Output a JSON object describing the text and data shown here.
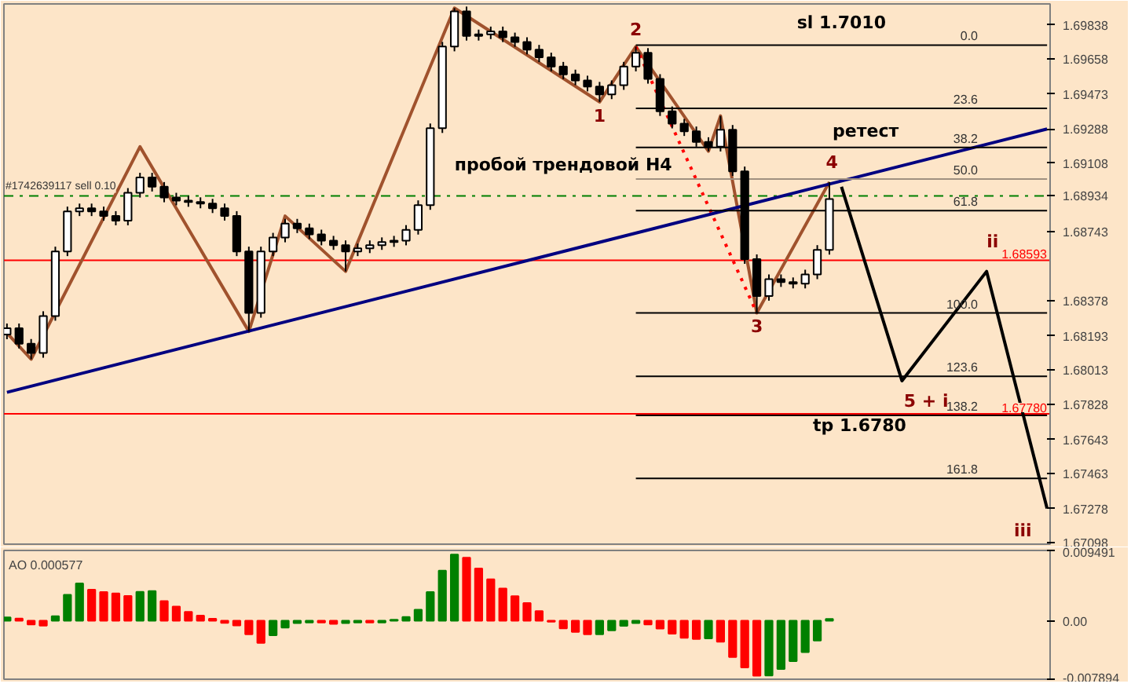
{
  "chart_data": [
    {
      "type": "candlestick",
      "color": "#000000",
      "ylim": [
        1.6709,
        1.6995
      ],
      "tick_labels": "y",
      "yticks": [
        1.69838,
        1.69658,
        1.69473,
        1.69288,
        1.69108,
        1.68934,
        1.68743,
        1.68378,
        1.68193,
        1.68013,
        1.67828,
        1.67643,
        1.67463,
        1.67278,
        1.67098
      ],
      "categories": [
        null,
        null,
        null,
        null,
        null,
        null,
        null,
        null,
        null,
        null,
        null,
        null,
        null,
        null,
        null,
        null,
        null,
        null,
        null,
        null,
        null,
        null,
        null,
        null,
        null,
        null,
        null,
        null,
        null,
        null,
        null,
        null,
        null,
        null,
        null,
        null,
        null,
        null,
        null,
        null,
        null,
        null,
        null,
        null,
        null,
        null,
        null,
        null,
        null,
        null,
        null,
        null,
        null,
        null,
        null,
        null,
        null,
        null,
        null,
        null,
        null,
        null,
        null,
        null,
        null,
        null,
        null,
        null,
        null,
        null,
        null,
        null,
        null,
        null,
        null,
        null,
        null,
        null,
        null,
        null,
        null,
        null,
        null,
        null,
        null,
        null,
        null
      ],
      "ohlc": [
        [
          1.682,
          1.68258,
          1.68175,
          1.68233
        ],
        [
          1.68233,
          1.68258,
          1.68126,
          1.68151
        ],
        [
          1.68151,
          1.68176,
          1.68069,
          1.68102
        ],
        [
          1.68102,
          1.68323,
          1.68077,
          1.68298
        ],
        [
          1.68298,
          1.68665,
          1.68273,
          1.6864
        ],
        [
          1.6864,
          1.68877,
          1.68615,
          1.68852
        ],
        [
          1.68852,
          1.68893,
          1.68827,
          1.68868
        ],
        [
          1.68868,
          1.68893,
          1.68827,
          1.68852
        ],
        [
          1.68852,
          1.68877,
          1.68803,
          1.68828
        ],
        [
          1.68828,
          1.68853,
          1.68778,
          1.68803
        ],
        [
          1.68803,
          1.68975,
          1.68778,
          1.6895
        ],
        [
          1.6895,
          1.69056,
          1.68925,
          1.69031
        ],
        [
          1.69031,
          1.69056,
          1.68957,
          1.68982
        ],
        [
          1.68982,
          1.69007,
          1.689,
          1.68925
        ],
        [
          1.68925,
          1.6895,
          1.68884,
          1.68909
        ],
        [
          1.68909,
          1.68934,
          1.68876,
          1.68901
        ],
        [
          1.68901,
          1.68926,
          1.68868,
          1.68893
        ],
        [
          1.68893,
          1.68918,
          1.68843,
          1.68868
        ],
        [
          1.68868,
          1.68893,
          1.68803,
          1.68828
        ],
        [
          1.68828,
          1.68853,
          1.68615,
          1.6864
        ],
        [
          1.6864,
          1.68665,
          1.68216,
          1.68314
        ],
        [
          1.68314,
          1.68665,
          1.68289,
          1.6864
        ],
        [
          1.6864,
          1.68738,
          1.68615,
          1.68713
        ],
        [
          1.68713,
          1.68812,
          1.68688,
          1.68787
        ],
        [
          1.68787,
          1.68812,
          1.68737,
          1.68762
        ],
        [
          1.68762,
          1.68787,
          1.68705,
          1.6873
        ],
        [
          1.6873,
          1.68755,
          1.68672,
          1.68697
        ],
        [
          1.68697,
          1.68722,
          1.68648,
          1.68673
        ],
        [
          1.68673,
          1.68698,
          1.68534,
          1.6864
        ],
        [
          1.6864,
          1.68681,
          1.68615,
          1.68656
        ],
        [
          1.68656,
          1.68698,
          1.68631,
          1.68673
        ],
        [
          1.68673,
          1.68714,
          1.68648,
          1.68689
        ],
        [
          1.68689,
          1.68722,
          1.68664,
          1.68697
        ],
        [
          1.68697,
          1.68779,
          1.68672,
          1.68754
        ],
        [
          1.68754,
          1.6891,
          1.68729,
          1.68885
        ],
        [
          1.68885,
          1.69317,
          1.6886,
          1.69292
        ],
        [
          1.69292,
          1.69749,
          1.69267,
          1.69724
        ],
        [
          1.69724,
          1.69928,
          1.69699,
          1.69911
        ],
        [
          1.69911,
          1.69936,
          1.69756,
          1.69781
        ],
        [
          1.69781,
          1.69814,
          1.69756,
          1.69789
        ],
        [
          1.69789,
          1.6983,
          1.69764,
          1.69805
        ],
        [
          1.69805,
          1.6983,
          1.69748,
          1.69773
        ],
        [
          1.69773,
          1.69798,
          1.69723,
          1.69748
        ],
        [
          1.69748,
          1.69773,
          1.69683,
          1.69708
        ],
        [
          1.69708,
          1.69733,
          1.69642,
          1.69667
        ],
        [
          1.69667,
          1.69692,
          1.69593,
          1.69618
        ],
        [
          1.69618,
          1.69643,
          1.69552,
          1.69577
        ],
        [
          1.69577,
          1.69602,
          1.6952,
          1.69545
        ],
        [
          1.69545,
          1.6957,
          1.69487,
          1.69512
        ],
        [
          1.69512,
          1.69537,
          1.69431,
          1.69471
        ],
        [
          1.69471,
          1.69545,
          1.69446,
          1.6952
        ],
        [
          1.6952,
          1.69643,
          1.69495,
          1.69618
        ],
        [
          1.69618,
          1.69724,
          1.69593,
          1.69691
        ],
        [
          1.69691,
          1.69716,
          1.69528,
          1.69553
        ],
        [
          1.69553,
          1.69578,
          1.69357,
          1.69382
        ],
        [
          1.69382,
          1.69407,
          1.69291,
          1.69316
        ],
        [
          1.69316,
          1.69341,
          1.69251,
          1.69276
        ],
        [
          1.69276,
          1.69301,
          1.69194,
          1.69219
        ],
        [
          1.69219,
          1.69244,
          1.6917,
          1.69194
        ],
        [
          1.69194,
          1.69357,
          1.69169,
          1.69284
        ],
        [
          1.69284,
          1.69309,
          1.69039,
          1.69064
        ],
        [
          1.69064,
          1.69089,
          1.68574,
          1.68599
        ],
        [
          1.68599,
          1.68624,
          1.68314,
          1.68404
        ],
        [
          1.68404,
          1.68518,
          1.68379,
          1.68493
        ],
        [
          1.68493,
          1.68518,
          1.68452,
          1.68477
        ],
        [
          1.68477,
          1.68502,
          1.68444,
          1.68469
        ],
        [
          1.68469,
          1.68543,
          1.68444,
          1.68518
        ],
        [
          1.68518,
          1.68673,
          1.68493,
          1.68648
        ],
        [
          1.68648,
          1.69007,
          1.68623,
          1.68917
        ],
        null,
        null,
        null,
        null,
        null,
        null,
        null,
        null,
        null,
        null,
        null,
        null,
        null,
        null,
        null,
        null,
        null,
        null
      ],
      "series": [
        {
          "type": "line",
          "color": "#a0522d",
          "line_style": "solid",
          "values": [
            1.68208,
            null,
            1.68069,
            null,
            null,
            null,
            null,
            null,
            null,
            null,
            null,
            1.69194,
            null,
            null,
            null,
            null,
            null,
            null,
            null,
            null,
            1.68216,
            null,
            null,
            1.68827,
            null,
            null,
            null,
            null,
            1.68534,
            null,
            null,
            null,
            null,
            null,
            null,
            null,
            null,
            1.69928,
            null,
            null,
            null,
            null,
            null,
            null,
            null,
            null,
            null,
            null,
            null,
            1.69431,
            null,
            null,
            1.69724,
            null,
            null,
            null,
            null,
            null,
            1.6917,
            1.69357,
            null,
            null,
            1.68314,
            null,
            null,
            null,
            null,
            null,
            1.69007,
            null,
            null,
            null,
            null,
            null,
            null,
            null,
            null,
            null,
            null,
            null,
            null,
            null,
            null,
            null,
            null,
            null,
            null
          ]
        },
        {
          "type": "line",
          "color": "#ff0000",
          "line_style": "dotted",
          "values": [
            null,
            null,
            null,
            null,
            null,
            null,
            null,
            null,
            null,
            null,
            null,
            null,
            null,
            null,
            null,
            null,
            null,
            null,
            null,
            null,
            null,
            null,
            null,
            null,
            null,
            null,
            null,
            null,
            null,
            null,
            null,
            null,
            null,
            null,
            null,
            null,
            null,
            null,
            null,
            null,
            null,
            null,
            null,
            null,
            null,
            null,
            null,
            null,
            null,
            null,
            null,
            null,
            1.69724,
            null,
            null,
            null,
            null,
            null,
            null,
            null,
            null,
            null,
            1.68314,
            null,
            null,
            null,
            null,
            null,
            null,
            null,
            null,
            null,
            null,
            null,
            null,
            null,
            null,
            null,
            null,
            null,
            null,
            null,
            null,
            null,
            null,
            null,
            null
          ]
        },
        {
          "type": "line",
          "color": "#000080",
          "line_style": "solid",
          "values": [
            1.67894,
            null,
            null,
            null,
            null,
            null,
            null,
            null,
            null,
            null,
            null,
            null,
            null,
            null,
            null,
            null,
            null,
            null,
            null,
            null,
            null,
            null,
            null,
            null,
            null,
            null,
            null,
            null,
            null,
            null,
            null,
            null,
            null,
            null,
            null,
            null,
            null,
            null,
            null,
            null,
            null,
            null,
            null,
            null,
            null,
            null,
            null,
            null,
            null,
            null,
            null,
            null,
            null,
            null,
            null,
            null,
            null,
            null,
            null,
            null,
            null,
            null,
            null,
            null,
            null,
            null,
            null,
            null,
            null,
            null,
            null,
            null,
            null,
            null,
            null,
            null,
            null,
            null,
            null,
            null,
            null,
            null,
            null,
            null,
            null,
            null,
            1.69288
          ]
        },
        {
          "type": "line",
          "color": "#000000",
          "line_style": "solid",
          "values": [
            null,
            null,
            null,
            null,
            null,
            null,
            null,
            null,
            null,
            null,
            null,
            null,
            null,
            null,
            null,
            null,
            null,
            null,
            null,
            null,
            null,
            null,
            null,
            null,
            null,
            null,
            null,
            null,
            null,
            null,
            null,
            null,
            null,
            null,
            null,
            null,
            null,
            null,
            null,
            null,
            null,
            null,
            null,
            null,
            null,
            null,
            null,
            null,
            null,
            null,
            null,
            null,
            1.69732,
            null,
            null,
            null,
            null,
            null,
            null,
            null,
            null,
            null,
            null,
            null,
            null,
            null,
            null,
            null,
            null,
            null,
            null,
            null,
            null,
            null,
            null,
            null,
            null,
            null,
            null,
            null,
            null,
            null,
            null,
            null,
            null,
            null,
            1.69732
          ]
        },
        {
          "type": "line",
          "color": "#000000",
          "line_style": "solid",
          "values": [
            null,
            null,
            null,
            null,
            null,
            null,
            null,
            null,
            null,
            null,
            null,
            null,
            null,
            null,
            null,
            null,
            null,
            null,
            null,
            null,
            null,
            null,
            null,
            null,
            null,
            null,
            null,
            null,
            null,
            null,
            null,
            null,
            null,
            null,
            null,
            null,
            null,
            null,
            null,
            null,
            null,
            null,
            null,
            null,
            null,
            null,
            null,
            null,
            null,
            null,
            null,
            null,
            1.69397,
            null,
            null,
            null,
            null,
            null,
            null,
            null,
            null,
            null,
            null,
            null,
            null,
            null,
            null,
            null,
            null,
            null,
            null,
            null,
            null,
            null,
            null,
            null,
            null,
            null,
            null,
            null,
            null,
            null,
            null,
            null,
            null,
            null,
            1.69397
          ]
        },
        {
          "type": "line",
          "color": "#000000",
          "line_style": "solid",
          "values": [
            null,
            null,
            null,
            null,
            null,
            null,
            null,
            null,
            null,
            null,
            null,
            null,
            null,
            null,
            null,
            null,
            null,
            null,
            null,
            null,
            null,
            null,
            null,
            null,
            null,
            null,
            null,
            null,
            null,
            null,
            null,
            null,
            null,
            null,
            null,
            null,
            null,
            null,
            null,
            null,
            null,
            null,
            null,
            null,
            null,
            null,
            null,
            null,
            null,
            null,
            null,
            null,
            1.6919,
            null,
            null,
            null,
            null,
            null,
            null,
            null,
            null,
            null,
            null,
            null,
            null,
            null,
            null,
            null,
            null,
            null,
            null,
            null,
            null,
            null,
            null,
            null,
            null,
            null,
            null,
            null,
            null,
            null,
            null,
            null,
            null,
            null,
            1.6919
          ]
        },
        {
          "type": "line",
          "color": "#a09080",
          "line_style": "solid",
          "values": [
            null,
            null,
            null,
            null,
            null,
            null,
            null,
            null,
            null,
            null,
            null,
            null,
            null,
            null,
            null,
            null,
            null,
            null,
            null,
            null,
            null,
            null,
            null,
            null,
            null,
            null,
            null,
            null,
            null,
            null,
            null,
            null,
            null,
            null,
            null,
            null,
            null,
            null,
            null,
            null,
            null,
            null,
            null,
            null,
            null,
            null,
            null,
            null,
            null,
            null,
            null,
            null,
            1.69023,
            null,
            null,
            null,
            null,
            null,
            null,
            null,
            null,
            null,
            null,
            null,
            null,
            null,
            null,
            null,
            null,
            null,
            null,
            null,
            null,
            null,
            null,
            null,
            null,
            null,
            null,
            null,
            null,
            null,
            null,
            null,
            null,
            null,
            1.69023
          ]
        },
        {
          "type": "line",
          "color": "#000000",
          "line_style": "solid",
          "values": [
            null,
            null,
            null,
            null,
            null,
            null,
            null,
            null,
            null,
            null,
            null,
            null,
            null,
            null,
            null,
            null,
            null,
            null,
            null,
            null,
            null,
            null,
            null,
            null,
            null,
            null,
            null,
            null,
            null,
            null,
            null,
            null,
            null,
            null,
            null,
            null,
            null,
            null,
            null,
            null,
            null,
            null,
            null,
            null,
            null,
            null,
            null,
            null,
            null,
            null,
            null,
            null,
            1.68856,
            null,
            null,
            null,
            null,
            null,
            null,
            null,
            null,
            null,
            null,
            null,
            null,
            null,
            null,
            null,
            null,
            null,
            null,
            null,
            null,
            null,
            null,
            null,
            null,
            null,
            null,
            null,
            null,
            null,
            null,
            null,
            null,
            null,
            1.68856
          ]
        },
        {
          "type": "line",
          "color": "#000000",
          "line_style": "solid",
          "values": [
            null,
            null,
            null,
            null,
            null,
            null,
            null,
            null,
            null,
            null,
            null,
            null,
            null,
            null,
            null,
            null,
            null,
            null,
            null,
            null,
            null,
            null,
            null,
            null,
            null,
            null,
            null,
            null,
            null,
            null,
            null,
            null,
            null,
            null,
            null,
            null,
            null,
            null,
            null,
            null,
            null,
            null,
            null,
            null,
            null,
            null,
            null,
            null,
            null,
            null,
            null,
            null,
            1.68314,
            null,
            null,
            null,
            null,
            null,
            null,
            null,
            null,
            null,
            null,
            null,
            null,
            null,
            null,
            null,
            null,
            null,
            null,
            null,
            null,
            null,
            null,
            null,
            null,
            null,
            null,
            null,
            null,
            null,
            null,
            null,
            null,
            null,
            1.68314
          ]
        },
        {
          "type": "line",
          "color": "#000000",
          "line_style": "solid",
          "values": [
            null,
            null,
            null,
            null,
            null,
            null,
            null,
            null,
            null,
            null,
            null,
            null,
            null,
            null,
            null,
            null,
            null,
            null,
            null,
            null,
            null,
            null,
            null,
            null,
            null,
            null,
            null,
            null,
            null,
            null,
            null,
            null,
            null,
            null,
            null,
            null,
            null,
            null,
            null,
            null,
            null,
            null,
            null,
            null,
            null,
            null,
            null,
            null,
            null,
            null,
            null,
            null,
            1.67979,
            null,
            null,
            null,
            null,
            null,
            null,
            null,
            null,
            null,
            null,
            null,
            null,
            null,
            null,
            null,
            null,
            null,
            null,
            null,
            null,
            null,
            null,
            null,
            null,
            null,
            null,
            null,
            null,
            null,
            null,
            null,
            null,
            null,
            1.67979
          ]
        },
        {
          "type": "line",
          "color": "#000000",
          "line_style": "solid",
          "values": [
            null,
            null,
            null,
            null,
            null,
            null,
            null,
            null,
            null,
            null,
            null,
            null,
            null,
            null,
            null,
            null,
            null,
            null,
            null,
            null,
            null,
            null,
            null,
            null,
            null,
            null,
            null,
            null,
            null,
            null,
            null,
            null,
            null,
            null,
            null,
            null,
            null,
            null,
            null,
            null,
            null,
            null,
            null,
            null,
            null,
            null,
            null,
            null,
            null,
            null,
            null,
            null,
            1.67772,
            null,
            null,
            null,
            null,
            null,
            null,
            null,
            null,
            null,
            null,
            null,
            null,
            null,
            null,
            null,
            null,
            null,
            null,
            null,
            null,
            null,
            null,
            null,
            null,
            null,
            null,
            null,
            null,
            null,
            null,
            null,
            null,
            null,
            1.67772
          ]
        },
        {
          "type": "line",
          "color": "#000000",
          "line_style": "solid",
          "values": [
            null,
            null,
            null,
            null,
            null,
            null,
            null,
            null,
            null,
            null,
            null,
            null,
            null,
            null,
            null,
            null,
            null,
            null,
            null,
            null,
            null,
            null,
            null,
            null,
            null,
            null,
            null,
            null,
            null,
            null,
            null,
            null,
            null,
            null,
            null,
            null,
            null,
            null,
            null,
            null,
            null,
            null,
            null,
            null,
            null,
            null,
            null,
            null,
            null,
            null,
            null,
            null,
            1.67438,
            null,
            null,
            null,
            null,
            null,
            null,
            null,
            null,
            null,
            null,
            null,
            null,
            null,
            null,
            null,
            null,
            null,
            null,
            null,
            null,
            null,
            null,
            null,
            null,
            null,
            null,
            null,
            null,
            null,
            null,
            null,
            null,
            null,
            1.67438
          ]
        },
        {
          "type": "line",
          "color": "#000000",
          "line_style": "solid",
          "values": [
            null,
            null,
            null,
            null,
            null,
            null,
            null,
            null,
            null,
            null,
            null,
            null,
            null,
            null,
            null,
            null,
            null,
            null,
            null,
            null,
            null,
            null,
            null,
            null,
            null,
            null,
            null,
            null,
            null,
            null,
            null,
            null,
            null,
            null,
            null,
            null,
            null,
            null,
            null,
            null,
            null,
            null,
            null,
            null,
            null,
            null,
            null,
            null,
            null,
            null,
            null,
            null,
            null,
            null,
            null,
            null,
            null,
            null,
            null,
            null,
            null,
            null,
            null,
            null,
            null,
            null,
            null,
            null,
            null,
            1.68982,
            null,
            null,
            null,
            null,
            1.67955,
            null,
            null,
            null,
            null,
            null,
            null,
            1.68534,
            null,
            null,
            null,
            null,
            1.67279
          ]
        }
      ],
      "ref_lines": [
        {
          "axis": "y",
          "value": 1.68593,
          "label": "1.68593",
          "color": "#ff0000",
          "line_style": "solid"
        },
        {
          "axis": "y",
          "value": 1.6778,
          "label": "1.67780",
          "color": "#ff0000",
          "line_style": "solid"
        },
        {
          "axis": "y",
          "value": 1.68934,
          "label": "#1742639117 sell 0.10",
          "color": "#008000",
          "line_style": "dashed"
        }
      ],
      "annotations": [
        "sl 1.7010",
        "1",
        "2",
        "3",
        "4",
        "ретест",
        "пробой трендовой H4",
        "ii",
        "5 + i",
        "tp 1.6780",
        "iii",
        {
          "text": "0.0",
          "y": 1.69732
        },
        {
          "text": "23.6",
          "y": 1.69397
        },
        {
          "text": "38.2",
          "y": 1.6919
        },
        {
          "text": "50.0",
          "y": 1.69023
        },
        {
          "text": "61.8",
          "y": 1.68856
        },
        {
          "text": "100.0",
          "y": 1.68314
        },
        {
          "text": "123.6",
          "y": 1.67979
        },
        {
          "text": "138.2",
          "y": 1.67772
        },
        {
          "text": "161.8",
          "y": 1.67438
        }
      ]
    },
    {
      "type": "bar",
      "title": "AO 0.000577",
      "ylim": [
        -0.007894,
        0.009491
      ],
      "tick_labels": "y",
      "yticks": [
        {
          "value": 0.009491,
          "label": "0.009491"
        },
        {
          "value": 0,
          "label": "0.00"
        },
        {
          "value": -0.007894,
          "label": "-0.007894"
        }
      ],
      "categories": [
        null,
        null,
        null,
        null,
        null,
        null,
        null,
        null,
        null,
        null,
        null,
        null,
        null,
        null,
        null,
        null,
        null,
        null,
        null,
        null,
        null,
        null,
        null,
        null,
        null,
        null,
        null,
        null,
        null,
        null,
        null,
        null,
        null,
        null,
        null,
        null,
        null,
        null,
        null,
        null,
        null,
        null,
        null,
        null,
        null,
        null,
        null,
        null,
        null,
        null,
        null,
        null,
        null,
        null,
        null,
        null,
        null,
        null,
        null,
        null,
        null,
        null,
        null,
        null,
        null,
        null,
        null,
        null,
        null,
        null,
        null,
        null,
        null,
        null,
        null,
        null,
        null,
        null,
        null,
        null,
        null,
        null,
        null,
        null,
        null,
        null,
        null
      ],
      "values": [
        0.00046,
        0.0003,
        -0.0005,
        -0.00065,
        0.0006,
        0.0035,
        0.00504,
        0.0042,
        0.00387,
        0.00368,
        0.00335,
        0.00389,
        0.004,
        0.00266,
        0.00192,
        0.00119,
        0.00069,
        0.00026,
        -0.00028,
        -0.00064,
        -0.00183,
        -0.00298,
        -0.00195,
        -0.00092,
        -0.00032,
        -0.00023,
        -0.00023,
        -0.00041,
        -0.00032,
        -0.00023,
        -0.00023,
        -0.00023,
        0.00014,
        0.00051,
        0.00149,
        0.00386,
        0.00676,
        0.00893,
        0.00852,
        0.00705,
        0.00559,
        0.00435,
        0.00332,
        0.00238,
        0.00129,
        -0.00014,
        -0.00103,
        -0.00151,
        -0.00183,
        -0.00183,
        -0.0013,
        -0.00069,
        -0.00032,
        -0.0005,
        -0.00105,
        -0.00174,
        -0.00229,
        -0.00247,
        -0.00238,
        -0.00284,
        -0.00491,
        -0.0063,
        -0.00743,
        -0.00739,
        -0.00652,
        -0.00545,
        -0.00424,
        -0.00266,
        0.00023,
        null,
        null,
        null,
        null,
        null,
        null,
        null,
        null,
        null,
        null,
        null,
        null,
        null,
        null,
        null,
        null,
        null,
        null
      ],
      "colors": [
        "#008000",
        "#ff0000",
        "#ff0000",
        "#ff0000",
        "#008000",
        "#008000",
        "#008000",
        "#ff0000",
        "#ff0000",
        "#ff0000",
        "#ff0000",
        "#008000",
        "#008000",
        "#ff0000",
        "#ff0000",
        "#ff0000",
        "#ff0000",
        "#ff0000",
        "#ff0000",
        "#ff0000",
        "#ff0000",
        "#ff0000",
        "#008000",
        "#008000",
        "#008000",
        "#008000",
        "#ff0000",
        "#ff0000",
        "#008000",
        "#008000",
        "#ff0000",
        "#008000",
        "#008000",
        "#008000",
        "#008000",
        "#008000",
        "#008000",
        "#008000",
        "#ff0000",
        "#ff0000",
        "#ff0000",
        "#ff0000",
        "#ff0000",
        "#ff0000",
        "#ff0000",
        "#ff0000",
        "#ff0000",
        "#ff0000",
        "#ff0000",
        "#008000",
        "#008000",
        "#008000",
        "#008000",
        "#ff0000",
        "#ff0000",
        "#ff0000",
        "#ff0000",
        "#ff0000",
        "#008000",
        "#ff0000",
        "#ff0000",
        "#ff0000",
        "#ff0000",
        "#008000",
        "#008000",
        "#008000",
        "#008000",
        "#008000",
        "#008000",
        null,
        null,
        null,
        null,
        null,
        null,
        null,
        null,
        null,
        null,
        null,
        null,
        null,
        null,
        null,
        null,
        null,
        null
      ]
    }
  ]
}
